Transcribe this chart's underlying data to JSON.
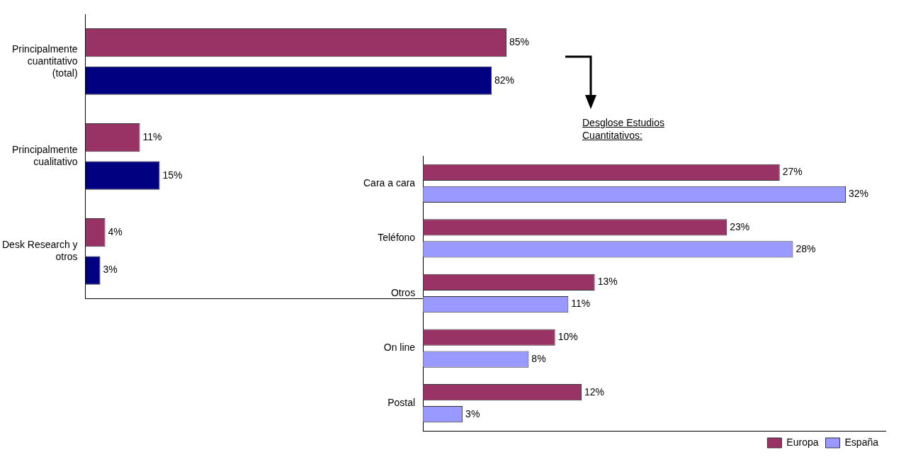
{
  "chart_data": [
    {
      "type": "bar",
      "orientation": "horizontal",
      "categories": [
        "Principalmente cuantitativo (total)",
        "Principalmente cualitativo",
        "Desk Research y otros"
      ],
      "tick_labels": "y",
      "grid": false,
      "legend": false,
      "series": [
        {
          "color": "#993366",
          "values": [
            85,
            11,
            4
          ],
          "value_labels": [
            "85%",
            "11%",
            "4%"
          ]
        },
        {
          "color": "#000080",
          "values": [
            82,
            15,
            3
          ],
          "value_labels": [
            "82%",
            "15%",
            "3%"
          ]
        }
      ]
    },
    {
      "type": "bar",
      "orientation": "horizontal",
      "title": "Desglose Estudios Cuantitativos:",
      "categories": [
        "Cara a cara",
        "Teléfono",
        "Otros",
        "On line",
        "Postal"
      ],
      "tick_labels": "y",
      "grid": false,
      "legend": "bottom right",
      "series": [
        {
          "name": "Europa",
          "color": "#993366",
          "values": [
            27,
            23,
            13,
            10,
            12
          ],
          "value_labels": [
            "27%",
            "23%",
            "13%",
            "10%",
            "12%"
          ]
        },
        {
          "name": "España",
          "color": "#9999ff",
          "values": [
            32,
            28,
            11,
            8,
            3
          ],
          "value_labels": [
            "32%",
            "28%",
            "11%",
            "8%",
            "3%"
          ]
        }
      ]
    }
  ]
}
